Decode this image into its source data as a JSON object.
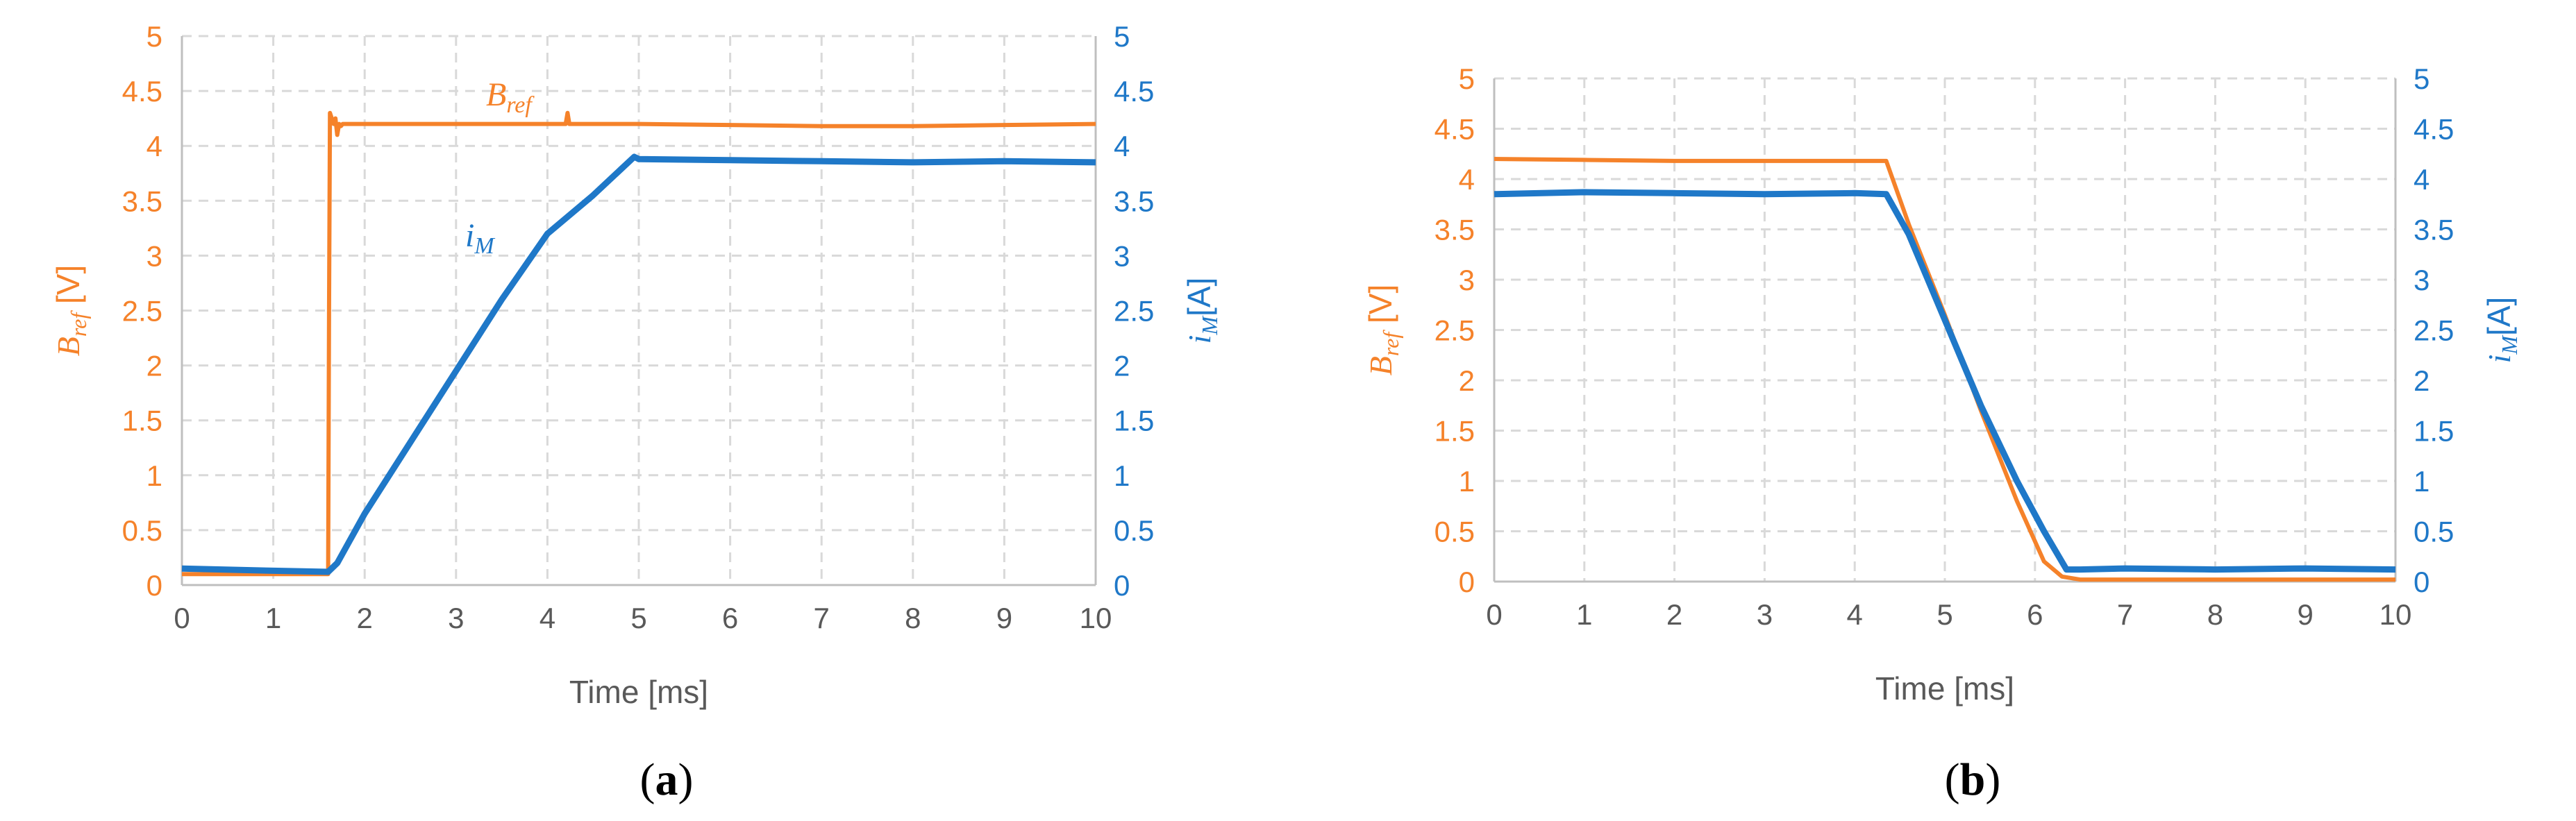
{
  "colors": {
    "bref": "#f5822a",
    "im": "#1f78c8",
    "grid": "#d9d9d9",
    "axis": "#bfbfbf",
    "text": "#595959"
  },
  "chart_data": [
    {
      "panel": "(a)",
      "panel_letter": "a",
      "type": "line",
      "xlabel": "Time [ms]",
      "xlim": [
        0,
        10
      ],
      "x_ticks": [
        "0",
        "1",
        "2",
        "3",
        "4",
        "5",
        "6",
        "7",
        "8",
        "9",
        "10"
      ],
      "ylabel_left": {
        "main": "B",
        "sub": "ref",
        "unit": " [V]"
      },
      "ylabel_right": {
        "main": "i",
        "sub": "M",
        "unit": "[A]"
      },
      "ylim_left": [
        0,
        5
      ],
      "ylim_right": [
        0,
        5
      ],
      "y_ticks": [
        "0",
        "0.5",
        "1",
        "1.5",
        "2",
        "2.5",
        "3",
        "3.5",
        "4",
        "4.5",
        "5"
      ],
      "grid": true,
      "annotations": [
        {
          "main": "B",
          "sub": "ref",
          "series": "bref"
        },
        {
          "main": "i",
          "sub": "M",
          "series": "im"
        }
      ],
      "series": [
        {
          "key": "bref",
          "axis": "left",
          "x": [
            0,
            1.6,
            1.61,
            1.62,
            1.64,
            1.66,
            1.68,
            1.7,
            1.72,
            1.74,
            1.76,
            1.8,
            2.0,
            3.0,
            4.0,
            4.2,
            4.22,
            4.24,
            5.0,
            6.0,
            7.0,
            8.0,
            9.0,
            10.0
          ],
          "y": [
            0.1,
            0.1,
            2.5,
            4.3,
            4.25,
            4.2,
            4.25,
            4.1,
            4.2,
            4.18,
            4.2,
            4.2,
            4.2,
            4.2,
            4.2,
            4.2,
            4.3,
            4.2,
            4.2,
            4.19,
            4.18,
            4.18,
            4.19,
            4.2
          ]
        },
        {
          "key": "im",
          "axis": "right",
          "x": [
            0,
            1.0,
            1.6,
            1.7,
            2.0,
            2.5,
            3.0,
            3.5,
            4.0,
            4.5,
            4.95,
            5.0,
            6.0,
            7.0,
            8.0,
            9.0,
            10.0
          ],
          "y": [
            0.15,
            0.13,
            0.12,
            0.2,
            0.65,
            1.3,
            1.95,
            2.6,
            3.2,
            3.55,
            3.9,
            3.88,
            3.87,
            3.86,
            3.85,
            3.86,
            3.85
          ]
        }
      ]
    },
    {
      "panel": "(b)",
      "panel_letter": "b",
      "type": "line",
      "xlabel": "Time [ms]",
      "xlim": [
        0,
        10
      ],
      "x_ticks": [
        "0",
        "1",
        "2",
        "3",
        "4",
        "5",
        "6",
        "7",
        "8",
        "9",
        "10"
      ],
      "ylabel_left": {
        "main": "B",
        "sub": "ref",
        "unit": " [V]"
      },
      "ylabel_right": {
        "main": "i",
        "sub": "M",
        "unit": "[A]"
      },
      "ylim_left": [
        0,
        5
      ],
      "ylim_right": [
        0,
        5
      ],
      "y_ticks": [
        "0",
        "0.5",
        "1",
        "1.5",
        "2",
        "2.5",
        "3",
        "3.5",
        "4",
        "4.5",
        "5"
      ],
      "grid": true,
      "annotations": [],
      "series": [
        {
          "key": "bref",
          "axis": "left",
          "x": [
            0,
            1.0,
            2.0,
            3.0,
            4.0,
            4.35,
            4.6,
            5.0,
            5.4,
            5.8,
            6.1,
            6.3,
            6.5,
            7.0,
            8.0,
            9.0,
            10.0
          ],
          "y": [
            4.2,
            4.19,
            4.18,
            4.18,
            4.18,
            4.18,
            3.55,
            2.65,
            1.7,
            0.8,
            0.2,
            0.05,
            0.02,
            0.02,
            0.02,
            0.02,
            0.02
          ]
        },
        {
          "key": "im",
          "axis": "right",
          "x": [
            0,
            1.0,
            2.0,
            3.0,
            4.0,
            4.35,
            4.6,
            5.0,
            5.4,
            5.8,
            6.1,
            6.35,
            6.5,
            7.0,
            8.0,
            9.0,
            10.0
          ],
          "y": [
            3.85,
            3.87,
            3.86,
            3.85,
            3.86,
            3.85,
            3.45,
            2.6,
            1.75,
            1.0,
            0.5,
            0.12,
            0.12,
            0.13,
            0.12,
            0.13,
            0.12
          ]
        }
      ]
    }
  ]
}
